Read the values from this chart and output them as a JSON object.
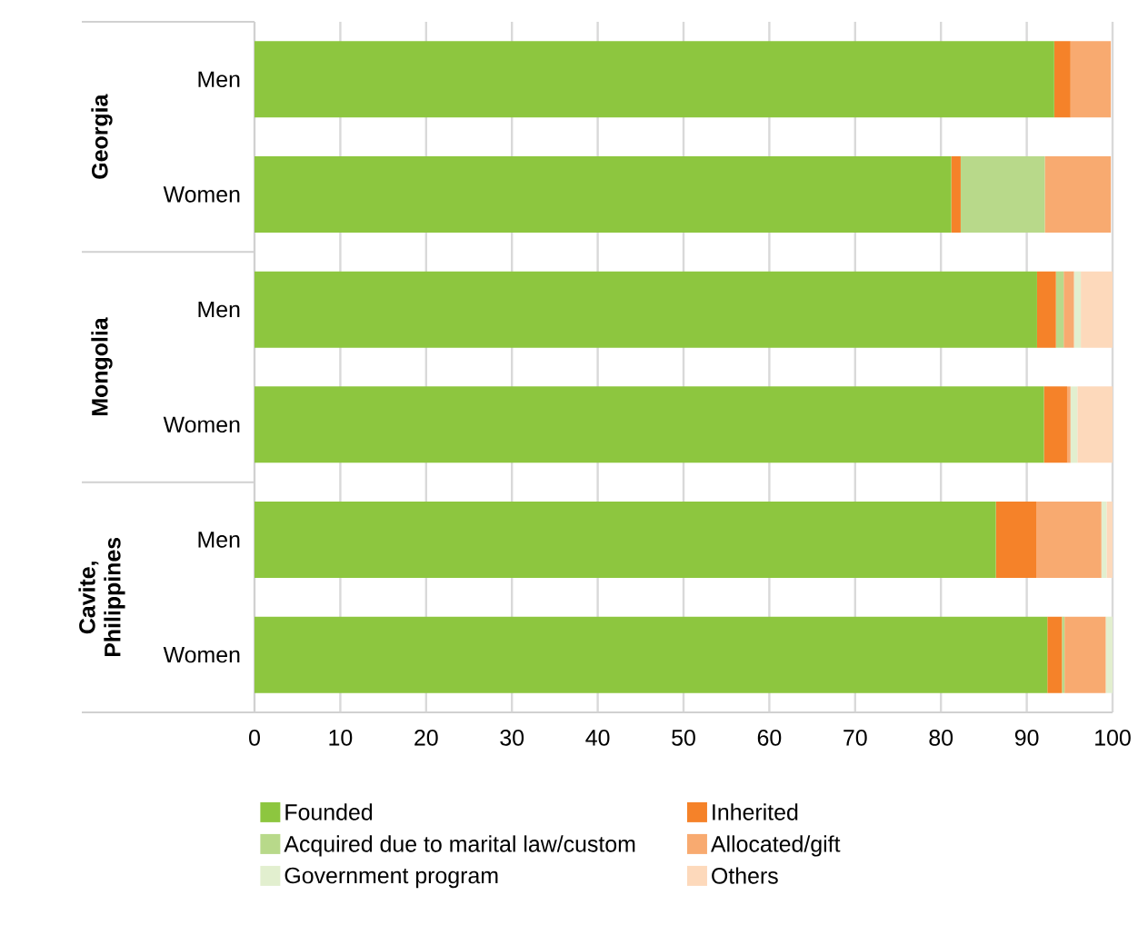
{
  "chart_data": {
    "type": "bar",
    "orientation": "horizontal",
    "stacked": true,
    "categories": [
      "Men",
      "Women",
      "Men",
      "Women",
      "Men",
      "Women"
    ],
    "series": [
      {
        "name": "Founded",
        "color": "#8dc63f",
        "values": [
          93.2,
          81.2,
          91.2,
          92.0,
          86.4,
          92.4
        ]
      },
      {
        "name": "Inherited",
        "color": "#f58229",
        "values": [
          1.9,
          1.1,
          2.2,
          2.7,
          4.7,
          1.7
        ]
      },
      {
        "name": "Acquired due to marital law/custom",
        "color": "#b8d98a",
        "values": [
          0,
          9.8,
          0.9,
          0,
          0,
          0.3
        ]
      },
      {
        "name": "Allocated/gift",
        "color": "#f8aa70",
        "values": [
          4.7,
          7.7,
          1.2,
          0.4,
          7.6,
          4.8
        ]
      },
      {
        "name": "Government program",
        "color": "#e2efcf",
        "values": [
          0,
          0,
          0.8,
          0.8,
          0.6,
          0.8
        ]
      },
      {
        "name": "Others",
        "color": "#fdd9bb",
        "values": [
          null,
          null,
          3.7,
          4.1,
          0.7,
          0
        ]
      }
    ],
    "annotations": [
      "Georgia",
      "Mongolia",
      "Cavite, Philippines"
    ],
    "xlim": [
      0,
      100
    ],
    "xticks": [
      0,
      10,
      20,
      30,
      40,
      50,
      60,
      70,
      80,
      90,
      100
    ],
    "grid": "x",
    "legend": "bottom"
  }
}
